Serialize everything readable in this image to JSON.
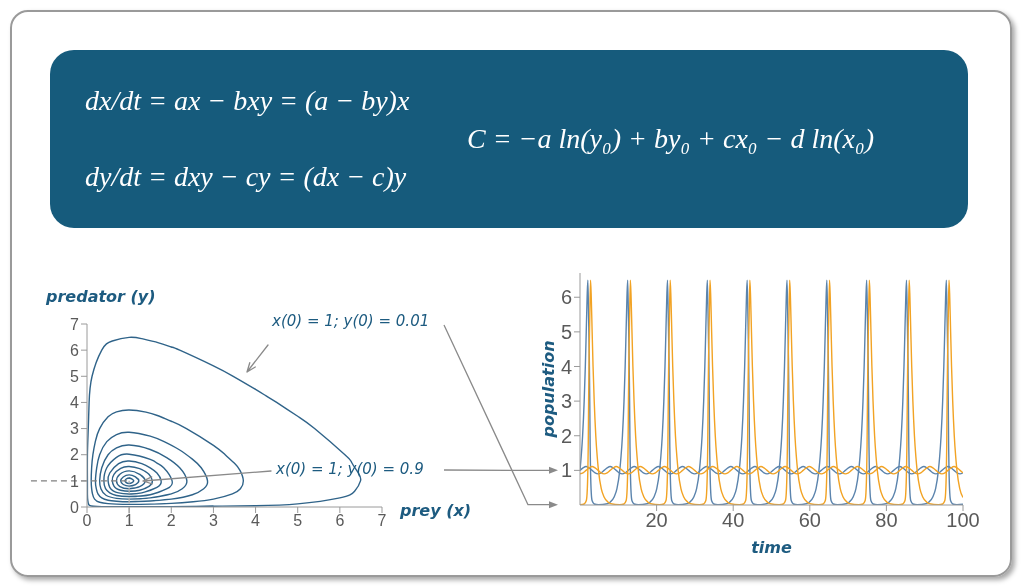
{
  "chart_data": [
    {
      "type": "other",
      "annotations": [
        "dx/dt = ax − bxy = (a − by)x",
        "dy/dt = dxy − cy = (dx − c)y",
        "C = −a ln(y₀) + by₀ + cx₀ − d ln(x₀)"
      ]
    },
    {
      "type": "line",
      "xlabel": "prey (x)",
      "ylabel": "predator (y)",
      "xlim": [
        0,
        7
      ],
      "ylim": [
        0,
        7
      ],
      "xticks": [
        0,
        1,
        2,
        3,
        4,
        5,
        6,
        7
      ],
      "yticks": [
        0,
        1,
        2,
        3,
        4,
        5,
        6,
        7
      ],
      "ref_lines": [
        {
          "axis": "x",
          "value": 1,
          "color": "#b4b4b4",
          "line_style": "dashed"
        },
        {
          "axis": "y",
          "value": 1,
          "color": "#808080",
          "line_style": "dashed"
        }
      ],
      "annotations": [
        "x(0) = 1; y(0) = 0.01",
        "x(0) = 1; y(0) = 0.9"
      ],
      "series": [
        {
          "color": "#2f6389",
          "x": [
            1,
            2,
            3,
            4,
            5,
            6,
            6.35,
            6.49,
            6.44,
            6.28,
            6.12,
            5.4,
            5,
            4.5,
            4.25,
            4,
            3.47,
            3,
            2.2,
            2,
            1.7,
            1.3,
            1,
            0.6,
            0.35,
            0.12,
            0.05,
            0.03,
            0.01,
            0.01,
            0.01,
            0.02,
            0.04,
            0.06,
            0.1,
            0.24,
            0.5,
            1,
            2,
            3
          ],
          "values": [
            0.01,
            0.01,
            0.03,
            0.05,
            0.12,
            0.35,
            0.6,
            1,
            1.3,
            1.7,
            2,
            3,
            3.47,
            4,
            4.25,
            4.5,
            5,
            5.4,
            6,
            6.12,
            6.28,
            6.44,
            6.49,
            6.35,
            6,
            5,
            4,
            3,
            2,
            1,
            0.5,
            0.24,
            0.1,
            0.06,
            0.04,
            0.02,
            0.01,
            0.01,
            0.01,
            0.03
          ]
        },
        {
          "color": "#2f6389",
          "x": [
            1,
            1.5,
            2,
            2.52,
            3,
            3.45,
            3.64,
            3.71,
            3.63,
            3.5,
            3.28,
            3,
            2.36,
            2,
            1.67,
            1.4,
            1,
            0.7,
            0.5,
            0.3,
            0.2,
            0.14,
            0.11,
            0.1,
            0.11,
            0.13,
            0.18,
            0.3,
            0.5,
            0.7,
            1,
            1.5,
            2
          ],
          "values": [
            0.1,
            0.11,
            0.14,
            0.2,
            0.3,
            0.5,
            0.7,
            1,
            1.4,
            1.67,
            2,
            2.36,
            3,
            3.28,
            3.5,
            3.63,
            3.71,
            3.64,
            3.45,
            3,
            2.52,
            2,
            1.5,
            1,
            0.7,
            0.5,
            0.3,
            0.18,
            0.13,
            0.11,
            0.1,
            0.11,
            0.14
          ]
        },
        {
          "color": "#2f6389",
          "x": [
            1,
            1.5,
            2,
            2.5,
            2.77,
            2.86,
            2.71,
            2.5,
            2.19,
            1.83,
            1.5,
            1,
            0.7,
            0.47,
            0.3,
            0.23,
            0.2,
            0.22,
            0.26,
            0.35,
            0.5,
            0.7,
            1,
            1.5,
            2
          ],
          "values": [
            0.2,
            0.23,
            0.3,
            0.47,
            0.7,
            1,
            1.5,
            1.83,
            2.19,
            2.5,
            2.71,
            2.86,
            2.77,
            2.5,
            2,
            1.5,
            1,
            0.7,
            0.5,
            0.35,
            0.26,
            0.22,
            0.2,
            0.23,
            0.3
          ]
        },
        {
          "color": "#2f6389",
          "x": [
            1,
            1.5,
            2,
            2.26,
            2.37,
            2.2,
            1.89,
            1.5,
            1,
            0.7,
            0.5,
            0.35,
            0.3,
            0.33,
            0.45,
            0.7,
            1,
            1.5,
            2
          ],
          "values": [
            0.3,
            0.35,
            0.5,
            0.7,
            1,
            1.5,
            1.89,
            2.2,
            2.37,
            2.26,
            2,
            1.5,
            1,
            0.7,
            0.45,
            0.33,
            0.3,
            0.35,
            0.5
          ]
        },
        {
          "color": "#2f6389",
          "x": [
            1,
            1.5,
            1.9,
            2.02,
            1.82,
            1.67,
            1.5,
            1,
            0.7,
            0.47,
            0.4,
            0.44,
            0.54,
            0.7,
            1,
            1.5,
            1.9
          ],
          "values": [
            0.4,
            0.47,
            0.7,
            1,
            1.5,
            1.67,
            1.82,
            2.02,
            1.9,
            1.5,
            1,
            0.7,
            0.54,
            0.44,
            0.4,
            0.47,
            0.7
          ]
        },
        {
          "color": "#2f6389",
          "x": [
            1,
            1.3,
            1.66,
            1.76,
            1.66,
            1.5,
            1.3,
            1,
            0.75,
            0.54,
            0.5,
            0.54,
            0.62,
            0.75,
            1,
            1.3,
            1.66
          ],
          "values": [
            0.5,
            0.54,
            0.75,
            1,
            1.3,
            1.5,
            1.66,
            1.76,
            1.66,
            1.3,
            1,
            0.75,
            0.62,
            0.54,
            0.5,
            0.54,
            0.75
          ]
        },
        {
          "color": "#2f6389",
          "x": [
            1,
            1.25,
            1.48,
            1.55,
            1.47,
            1.37,
            1.25,
            1,
            0.8,
            0.64,
            0.6,
            0.64,
            0.7,
            0.8,
            1,
            1.25,
            1.48
          ],
          "values": [
            0.6,
            0.64,
            0.8,
            1,
            1.25,
            1.37,
            1.47,
            1.55,
            1.48,
            1.25,
            1,
            0.8,
            0.7,
            0.64,
            0.6,
            0.64,
            0.8
          ]
        },
        {
          "color": "#2f6389",
          "x": [
            1,
            1.25,
            1.38,
            1.25,
            1,
            0.78,
            0.7,
            0.78,
            1,
            1.25,
            1.38,
            1.25
          ],
          "values": [
            0.7,
            0.78,
            1,
            1.25,
            1.38,
            1.25,
            1,
            0.78,
            0.7,
            0.78,
            1,
            1.25
          ]
        },
        {
          "color": "#2f6389",
          "x": [
            1,
            1.15,
            1.23,
            1.15,
            1,
            0.86,
            0.8,
            0.86,
            1,
            1.15,
            1.23,
            1.15
          ],
          "values": [
            0.8,
            0.86,
            1,
            1.15,
            1.23,
            1.15,
            1,
            0.86,
            0.8,
            0.86,
            1,
            1.15
          ]
        },
        {
          "color": "#2f6389",
          "x": [
            1,
            1.07,
            1.11,
            1.07,
            1,
            0.93,
            0.9,
            0.93,
            1,
            1.07,
            1.11,
            1.07,
            1
          ],
          "values": [
            0.9,
            0.93,
            1,
            1.07,
            1.11,
            1.07,
            1,
            0.93,
            0.9,
            0.93,
            1,
            1.07,
            1.11
          ]
        }
      ]
    },
    {
      "type": "line",
      "xlabel": "time",
      "ylabel": "population",
      "xlim": [
        0,
        100
      ],
      "ylim": [
        0,
        6.7
      ],
      "xticks": [
        20,
        40,
        60,
        80,
        100
      ],
      "yticks": [
        1,
        2,
        3,
        4,
        5,
        6
      ],
      "x": [
        0,
        0.79,
        1.58,
        2.36,
        3.15,
        3.94,
        4.73,
        5.51,
        6.3,
        7.09,
        7.88,
        8.66,
        9.45,
        10.24,
        11.03,
        11.81,
        12.6,
        13.39,
        14.18,
        14.96,
        15.75,
        16.54,
        17.33,
        18.11,
        18.9,
        19.69,
        20.48,
        21.26,
        22.05,
        22.84,
        23.63,
        24.41,
        25.2,
        25.99,
        26.78,
        27.56,
        28.35,
        29.14,
        29.93,
        30.71,
        31.5,
        32.29,
        33.08,
        33.86,
        34.65,
        35.44,
        36.23,
        37.01,
        37.8,
        38.59,
        39.38,
        40.16,
        40.95,
        41.74,
        42.53,
        43.31,
        44.1,
        44.89,
        45.68,
        46.46,
        47.25,
        48.04,
        48.83,
        49.61,
        50.4,
        51.19,
        51.98,
        52.76,
        53.55,
        54.34,
        55.13,
        55.91,
        56.7,
        57.49,
        58.28,
        59.06,
        59.85,
        60.64,
        61.43,
        62.21,
        63,
        63.79,
        64.58,
        65.36,
        66.15,
        66.94,
        67.73,
        68.51,
        69.3,
        70.09,
        70.88,
        71.66,
        72.45,
        73.24,
        74.03,
        74.81,
        75.6,
        76.39,
        77.18,
        77.96,
        78.75,
        79.54,
        80.33,
        81.11,
        81.9,
        82.69,
        83.48,
        84.26,
        85.05,
        85.84,
        86.63,
        87.41,
        88.2,
        88.99,
        89.78,
        90.56,
        91.35,
        92.14,
        92.93,
        93.71,
        94.5,
        95.29,
        96.08,
        96.86,
        97.65,
        98.44,
        99.23,
        100
      ],
      "series": [
        {
          "color": "#5b84ad",
          "x": [
            0,
            0.31,
            0.68,
            1.09,
            1.39,
            1.63,
            1.86,
            2.05,
            2.25,
            2.43,
            2.55,
            2.65,
            2.75,
            2.94,
            3.17,
            3.71,
            4.82,
            7.15,
            7.85,
            8.95,
            9.65,
            10.38,
            10.71,
            11.08,
            11.49,
            11.79,
            12.03,
            12.26,
            12.45,
            12.65,
            12.83,
            12.95,
            13.05,
            13.15,
            13.34,
            13.57,
            14.11,
            15.22,
            17.55,
            18.25,
            19.35,
            20.05,
            20.78,
            21.11,
            21.48,
            21.89,
            22.19,
            22.43,
            22.66,
            22.85,
            23.05,
            23.23,
            23.35,
            23.45,
            23.55,
            23.74,
            23.97,
            24.51,
            25.62,
            27.95,
            28.65,
            29.75,
            30.45,
            31.18,
            31.51,
            31.88,
            32.29,
            32.59,
            32.83,
            33.06,
            33.25,
            33.45,
            33.63,
            33.75,
            33.85,
            33.95,
            34.14,
            34.37,
            34.91,
            36.02,
            38.35,
            39.05,
            40.15,
            40.85,
            41.58,
            41.91,
            42.28,
            42.69,
            42.99,
            43.23,
            43.46,
            43.65,
            43.85,
            44.03,
            44.15,
            44.25,
            44.35,
            44.54,
            44.77,
            45.31,
            46.42,
            48.75,
            49.45,
            50.55,
            51.25,
            51.98,
            52.31,
            52.68,
            53.09,
            53.39,
            53.63,
            53.86,
            54.05,
            54.25,
            54.43,
            54.55,
            54.65,
            54.75,
            54.94,
            55.17,
            55.71,
            56.82,
            59.15,
            59.85,
            60.95,
            61.65,
            62.38,
            62.71,
            63.08,
            63.49,
            63.79,
            64.03,
            64.26,
            64.45,
            64.65,
            64.83,
            64.95,
            65.05,
            65.15,
            65.34,
            65.57,
            66.11,
            67.22,
            69.55,
            70.25,
            71.35,
            72.05,
            72.78,
            73.11,
            73.48,
            73.89,
            74.19,
            74.43,
            74.66,
            74.85,
            75.05,
            75.23,
            75.35,
            75.45,
            75.55,
            75.74,
            75.97,
            76.51,
            77.62,
            79.95,
            80.65,
            81.75,
            82.45,
            83.18,
            83.51,
            83.88,
            84.29,
            84.59,
            84.83,
            85.06,
            85.25,
            85.45,
            85.63,
            85.75,
            85.85,
            85.95,
            86.14,
            86.37,
            86.91,
            88.02,
            90.35,
            91.05,
            92.15,
            92.85,
            93.58,
            93.91,
            94.28,
            94.69,
            94.99,
            95.23,
            95.46,
            95.65,
            95.85,
            96.03,
            96.15,
            96.25,
            96.35,
            96.54,
            96.77,
            97.31,
            98.42,
            100
          ],
          "values": [
            1,
            1.4,
            2,
            3,
            4,
            5,
            6,
            6.49,
            5.4,
            4.25,
            3,
            1.7,
            1,
            0.35,
            0.12,
            0.03,
            0.01,
            0.04,
            0.08,
            0.24,
            0.47,
            1,
            1.4,
            2,
            3,
            4,
            5,
            6,
            6.49,
            5.4,
            4.25,
            3,
            1.7,
            1,
            0.35,
            0.12,
            0.03,
            0.01,
            0.04,
            0.08,
            0.24,
            0.47,
            1,
            1.4,
            2,
            3,
            4,
            5,
            6,
            6.49,
            5.4,
            4.25,
            3,
            1.7,
            1,
            0.35,
            0.12,
            0.03,
            0.01,
            0.04,
            0.08,
            0.24,
            0.47,
            1,
            1.4,
            2,
            3,
            4,
            5,
            6,
            6.49,
            5.4,
            4.25,
            3,
            1.7,
            1,
            0.35,
            0.12,
            0.03,
            0.01,
            0.04,
            0.08,
            0.24,
            0.47,
            1,
            1.4,
            2,
            3,
            4,
            5,
            6,
            6.49,
            5.4,
            4.25,
            3,
            1.7,
            1,
            0.35,
            0.12,
            0.03,
            0.01,
            0.04,
            0.08,
            0.24,
            0.47,
            1,
            1.4,
            2,
            3,
            4,
            5,
            6,
            6.49,
            5.4,
            4.25,
            3,
            1.7,
            1,
            0.35,
            0.12,
            0.03,
            0.01,
            0.04,
            0.08,
            0.24,
            0.47,
            1,
            1.4,
            2,
            3,
            4,
            5,
            6,
            6.49,
            5.4,
            4.25,
            3,
            1.7,
            1,
            0.35,
            0.12,
            0.03,
            0.01,
            0.04,
            0.08,
            0.24,
            0.47,
            1,
            1.4,
            2,
            3,
            4,
            5,
            6,
            6.49,
            5.4,
            4.25,
            3,
            1.7,
            1,
            0.35,
            0.12,
            0.03,
            0.01,
            0.04,
            0.08,
            0.24,
            0.47,
            1,
            1.4,
            2,
            3,
            4,
            5,
            6,
            6.49,
            5.4,
            4.25,
            3,
            1.7,
            1,
            0.35,
            0.12,
            0.03,
            0.01,
            0.04,
            0.08,
            0.24,
            0.47,
            1,
            1.4,
            2,
            3,
            4,
            5,
            6,
            6.49,
            5.4,
            4.25,
            3,
            1.7,
            1,
            0.35,
            0.12,
            0.03,
            0.01,
            0.02
          ]
        },
        {
          "color": "#5b84ad",
          "values": [
            1,
            1.07,
            1.11,
            1.07,
            1,
            0.93,
            0.9,
            0.93,
            1,
            1.07,
            1.11,
            1.07,
            1,
            0.93,
            0.9,
            0.93,
            1,
            1.07,
            1.11,
            1.07,
            1,
            0.93,
            0.9,
            0.93,
            1,
            1.07,
            1.11,
            1.07,
            1,
            0.93,
            0.9,
            0.93,
            1,
            1.07,
            1.11,
            1.07,
            1,
            0.93,
            0.9,
            0.93,
            1,
            1.07,
            1.11,
            1.07,
            1,
            0.93,
            0.9,
            0.93,
            1,
            1.07,
            1.11,
            1.07,
            1,
            0.93,
            0.9,
            0.93,
            1,
            1.07,
            1.11,
            1.07,
            1,
            0.93,
            0.9,
            0.93,
            1,
            1.07,
            1.11,
            1.07,
            1,
            0.93,
            0.9,
            0.93,
            1,
            1.07,
            1.11,
            1.07,
            1,
            0.93,
            0.9,
            0.93,
            1,
            1.07,
            1.11,
            1.07,
            1,
            0.93,
            0.9,
            0.93,
            1,
            1.07,
            1.11,
            1.07,
            1,
            0.93,
            0.9,
            0.93,
            1,
            1.07,
            1.11,
            1.07,
            1,
            0.93,
            0.9,
            0.93,
            1,
            1.07,
            1.11,
            1.07,
            1,
            0.93,
            0.9,
            0.93,
            1,
            1.07,
            1.11,
            1.07,
            1,
            0.93,
            0.9,
            0.93,
            1,
            1.07,
            1.11,
            1.07,
            1,
            0.93,
            0.9,
            0.93
          ]
        },
        {
          "color": "#f2a324",
          "x": [
            0,
            1.09,
            1.63,
            1.86,
            2.05,
            2.15,
            2.25,
            2.37,
            2.55,
            2.75,
            2.94,
            3.17,
            3.41,
            3.71,
            4.12,
            4.49,
            4.82,
            5.55,
            6.25,
            7.35,
            8.05,
            10.38,
            11.49,
            12.03,
            12.26,
            12.45,
            12.55,
            12.65,
            12.77,
            12.95,
            13.15,
            13.34,
            13.57,
            13.81,
            14.11,
            14.52,
            14.89,
            15.22,
            15.95,
            16.65,
            17.75,
            18.45,
            20.78,
            21.89,
            22.43,
            22.66,
            22.85,
            22.95,
            23.05,
            23.17,
            23.35,
            23.55,
            23.74,
            23.97,
            24.21,
            24.51,
            24.92,
            25.29,
            25.62,
            26.35,
            27.05,
            28.15,
            28.85,
            31.18,
            32.29,
            32.83,
            33.06,
            33.25,
            33.35,
            33.45,
            33.57,
            33.75,
            33.95,
            34.14,
            34.37,
            34.61,
            34.91,
            35.32,
            35.69,
            36.02,
            36.75,
            37.45,
            38.55,
            39.25,
            41.58,
            42.69,
            43.23,
            43.46,
            43.65,
            43.75,
            43.85,
            43.97,
            44.15,
            44.35,
            44.54,
            44.77,
            45.01,
            45.31,
            45.72,
            46.09,
            46.42,
            47.15,
            47.85,
            48.95,
            49.65,
            51.98,
            53.09,
            53.63,
            53.86,
            54.05,
            54.15,
            54.25,
            54.37,
            54.55,
            54.75,
            54.94,
            55.17,
            55.41,
            55.71,
            56.12,
            56.49,
            56.82,
            57.55,
            58.25,
            59.35,
            60.05,
            62.38,
            63.49,
            64.03,
            64.26,
            64.45,
            64.55,
            64.65,
            64.77,
            64.95,
            65.15,
            65.34,
            65.57,
            65.81,
            66.11,
            66.52,
            66.89,
            67.22,
            67.95,
            68.65,
            69.75,
            70.45,
            72.78,
            73.89,
            74.43,
            74.66,
            74.85,
            74.95,
            75.05,
            75.17,
            75.35,
            75.55,
            75.74,
            75.97,
            76.21,
            76.51,
            76.92,
            77.29,
            77.62,
            78.35,
            79.05,
            80.15,
            80.85,
            83.18,
            84.29,
            84.83,
            85.06,
            85.25,
            85.35,
            85.45,
            85.57,
            85.75,
            85.95,
            86.14,
            86.37,
            86.61,
            86.91,
            87.32,
            87.69,
            88.02,
            88.75,
            89.45,
            90.55,
            91.25,
            93.58,
            94.69,
            95.23,
            95.46,
            95.65,
            95.75,
            95.85,
            95.97,
            96.15,
            96.35,
            96.54,
            96.77,
            97.01,
            97.31,
            97.72,
            98.09,
            98.42,
            99.15,
            100
          ],
          "values": [
            0.01,
            0.03,
            0.12,
            0.35,
            1,
            1.7,
            3,
            4.25,
            5.4,
            6.49,
            6,
            5,
            4,
            3,
            2,
            1.4,
            1,
            0.47,
            0.24,
            0.08,
            0.04,
            0.01,
            0.03,
            0.12,
            0.35,
            1,
            1.7,
            3,
            4.25,
            5.4,
            6.49,
            6,
            5,
            4,
            3,
            2,
            1.4,
            1,
            0.47,
            0.24,
            0.08,
            0.04,
            0.01,
            0.03,
            0.12,
            0.35,
            1,
            1.7,
            3,
            4.25,
            5.4,
            6.49,
            6,
            5,
            4,
            3,
            2,
            1.4,
            1,
            0.47,
            0.24,
            0.08,
            0.04,
            0.01,
            0.03,
            0.12,
            0.35,
            1,
            1.7,
            3,
            4.25,
            5.4,
            6.49,
            6,
            5,
            4,
            3,
            2,
            1.4,
            1,
            0.47,
            0.24,
            0.08,
            0.04,
            0.01,
            0.03,
            0.12,
            0.35,
            1,
            1.7,
            3,
            4.25,
            5.4,
            6.49,
            6,
            5,
            4,
            3,
            2,
            1.4,
            1,
            0.47,
            0.24,
            0.08,
            0.04,
            0.01,
            0.03,
            0.12,
            0.35,
            1,
            1.7,
            3,
            4.25,
            5.4,
            6.49,
            6,
            5,
            4,
            3,
            2,
            1.4,
            1,
            0.47,
            0.24,
            0.08,
            0.04,
            0.01,
            0.03,
            0.12,
            0.35,
            1,
            1.7,
            3,
            4.25,
            5.4,
            6.49,
            6,
            5,
            4,
            3,
            2,
            1.4,
            1,
            0.47,
            0.24,
            0.08,
            0.04,
            0.01,
            0.03,
            0.12,
            0.35,
            1,
            1.7,
            3,
            4.25,
            5.4,
            6.49,
            6,
            5,
            4,
            3,
            2,
            1.4,
            1,
            0.47,
            0.24,
            0.08,
            0.04,
            0.01,
            0.03,
            0.12,
            0.35,
            1,
            1.7,
            3,
            4.25,
            5.4,
            6.49,
            6,
            5,
            4,
            3,
            2,
            1.4,
            1,
            0.47,
            0.24,
            0.08,
            0.04,
            0.01,
            0.03,
            0.12,
            0.35,
            1,
            1.7,
            3,
            4.25,
            5.4,
            6.49,
            6,
            5,
            4,
            3,
            2,
            1.4,
            1,
            0.47,
            0.22
          ]
        },
        {
          "color": "#f2a324",
          "values": [
            0.9,
            0.93,
            1,
            1.07,
            1.11,
            1.07,
            1,
            0.93,
            0.9,
            0.93,
            1,
            1.07,
            1.11,
            1.07,
            1,
            0.93,
            0.9,
            0.93,
            1,
            1.07,
            1.11,
            1.07,
            1,
            0.93,
            0.9,
            0.93,
            1,
            1.07,
            1.11,
            1.07,
            1,
            0.93,
            0.9,
            0.93,
            1,
            1.07,
            1.11,
            1.07,
            1,
            0.93,
            0.9,
            0.93,
            1,
            1.07,
            1.11,
            1.07,
            1,
            0.93,
            0.9,
            0.93,
            1,
            1.07,
            1.11,
            1.07,
            1,
            0.93,
            0.9,
            0.93,
            1,
            1.07,
            1.11,
            1.07,
            1,
            0.93,
            0.9,
            0.93,
            1,
            1.07,
            1.11,
            1.07,
            1,
            0.93,
            0.9,
            0.93,
            1,
            1.07,
            1.11,
            1.07,
            1,
            0.93,
            0.9,
            0.93,
            1,
            1.07,
            1.11,
            1.07,
            1,
            0.93,
            0.9,
            0.93,
            1,
            1.07,
            1.11,
            1.07,
            1,
            0.93,
            0.9,
            0.93,
            1,
            1.07,
            1.11,
            1.07,
            1,
            0.93,
            0.9,
            0.93,
            1,
            1.07,
            1.11,
            1.07,
            1,
            0.93,
            0.9,
            0.93,
            1,
            1.07,
            1.11,
            1.07,
            1,
            0.93,
            0.9,
            0.93,
            1,
            1.07,
            1.11,
            1.07,
            1,
            0.93
          ]
        }
      ]
    }
  ]
}
